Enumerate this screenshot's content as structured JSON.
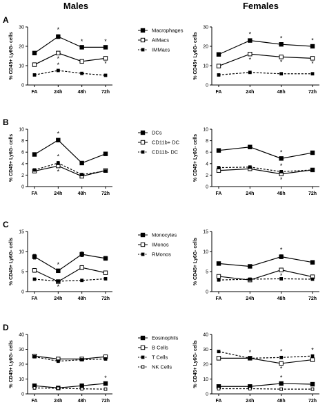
{
  "headings": {
    "left": "Males",
    "right": "Females"
  },
  "ylabel": "% CD45+ Ly6G- cells",
  "categories": [
    "FA",
    "24h",
    "48h",
    "72h"
  ],
  "chart_data": [
    {
      "panel": "A",
      "group": "Males",
      "type": "line",
      "ylim": [
        0,
        30
      ],
      "yticks": [
        0,
        10,
        20,
        30
      ],
      "series": [
        {
          "name": "Macrophages",
          "marker": "square-filled",
          "style": "solid",
          "values": [
            16.5,
            25,
            19.5,
            19.5
          ],
          "err": [
            0.5,
            1,
            0.5,
            0.5
          ],
          "sig": [
            false,
            true,
            true,
            true
          ]
        },
        {
          "name": "AIMacs",
          "marker": "square-open",
          "style": "solid",
          "values": [
            10.5,
            16.5,
            12.2,
            13.8
          ],
          "err": [
            0.5,
            0.8,
            0.5,
            0.5
          ],
          "sig": [
            false,
            true,
            false,
            true
          ]
        },
        {
          "name": "IMMacs",
          "marker": "square-filled-small",
          "style": "dashed",
          "values": [
            5.2,
            7.5,
            6,
            5
          ],
          "err": [
            0.3,
            0.4,
            0.3,
            0.3
          ],
          "sig": [
            false,
            true,
            false,
            false
          ]
        }
      ]
    },
    {
      "panel": "A",
      "group": "Females",
      "type": "line",
      "ylim": [
        0,
        30
      ],
      "yticks": [
        0,
        10,
        20,
        30
      ],
      "series": [
        {
          "name": "Macrophages",
          "marker": "square-filled",
          "style": "solid",
          "values": [
            15.8,
            23,
            21,
            20
          ],
          "err": [
            0.5,
            0.8,
            0.6,
            0.6
          ],
          "sig": [
            false,
            true,
            true,
            true
          ]
        },
        {
          "name": "AIMacs",
          "marker": "square-open",
          "style": "solid",
          "values": [
            9.8,
            16,
            14.5,
            13.8
          ],
          "err": [
            0.5,
            0.8,
            0.6,
            0.5
          ],
          "sig": [
            false,
            true,
            true,
            true
          ]
        },
        {
          "name": "IMMacs",
          "marker": "square-filled-small",
          "style": "dashed",
          "values": [
            5.2,
            6.5,
            5.8,
            5.8
          ],
          "err": [
            0.3,
            0.3,
            0.3,
            0.3
          ],
          "sig": [
            false,
            false,
            false,
            false
          ]
        }
      ]
    },
    {
      "panel": "B",
      "group": "Males",
      "type": "line",
      "ylim": [
        0,
        10
      ],
      "yticks": [
        0,
        2,
        4,
        6,
        8,
        10
      ],
      "series": [
        {
          "name": "DCs",
          "marker": "square-filled",
          "style": "solid",
          "values": [
            5.6,
            8.1,
            4.1,
            5.7
          ],
          "err": [
            0.2,
            0.3,
            0.2,
            0.15
          ],
          "sig": [
            false,
            true,
            false,
            false
          ]
        },
        {
          "name": "CD11b+ DC",
          "marker": "square-open",
          "style": "solid",
          "values": [
            2.7,
            3.6,
            1.8,
            2.8
          ],
          "err": [
            0.2,
            0.3,
            0.2,
            0.2
          ],
          "sig": [
            false,
            true,
            false,
            false
          ]
        },
        {
          "name": "CD11b- DC",
          "marker": "square-filled-small",
          "style": "dashed",
          "values": [
            2.9,
            4.1,
            2.1,
            2.7
          ],
          "err": [
            0.2,
            0.3,
            0.2,
            0.2
          ],
          "sig": [
            false,
            true,
            false,
            false
          ]
        }
      ]
    },
    {
      "panel": "B",
      "group": "Females",
      "type": "line",
      "ylim": [
        0,
        10
      ],
      "yticks": [
        0,
        2,
        4,
        6,
        8,
        10
      ],
      "series": [
        {
          "name": "DCs",
          "marker": "square-filled",
          "style": "solid",
          "values": [
            6.3,
            6.9,
            4.9,
            5.9
          ],
          "err": [
            0.3,
            0.2,
            0.2,
            0.3
          ],
          "sig": [
            false,
            false,
            true,
            false
          ]
        },
        {
          "name": "CD11b+ DC",
          "marker": "square-open",
          "style": "solid",
          "values": [
            2.8,
            3.1,
            2.2,
            2.9
          ],
          "err": [
            0.2,
            0.2,
            0.3,
            0.2
          ],
          "sig": [
            false,
            false,
            true,
            false
          ]
        },
        {
          "name": "CD11b- DC",
          "marker": "square-filled-small",
          "style": "dashed",
          "values": [
            3.3,
            3.4,
            2.6,
            2.9
          ],
          "err": [
            0.2,
            0.2,
            0.2,
            0.2
          ],
          "sig": [
            false,
            false,
            true,
            false
          ]
        }
      ]
    },
    {
      "panel": "C",
      "group": "Males",
      "type": "line",
      "ylim": [
        0,
        15
      ],
      "yticks": [
        0,
        5,
        10,
        15
      ],
      "series": [
        {
          "name": "Monocytes",
          "marker": "square-filled",
          "style": "solid",
          "values": [
            8.7,
            5.2,
            9.3,
            8.3
          ],
          "err": [
            0.6,
            0.3,
            0.6,
            0.5
          ],
          "sig": [
            false,
            true,
            false,
            false
          ]
        },
        {
          "name": "IMonos",
          "marker": "square-open",
          "style": "solid",
          "values": [
            5.3,
            2.5,
            6,
            4.7
          ],
          "err": [
            0.5,
            0.3,
            0.5,
            0.4
          ],
          "sig": [
            false,
            true,
            false,
            false
          ]
        },
        {
          "name": "RMonos",
          "marker": "square-filled-small",
          "style": "dashed",
          "values": [
            3.1,
            2.6,
            2.8,
            3.2
          ],
          "err": [
            0.2,
            0.2,
            0.2,
            0.2
          ],
          "sig": [
            false,
            false,
            false,
            false
          ]
        }
      ]
    },
    {
      "panel": "C",
      "group": "Females",
      "type": "line",
      "ylim": [
        0,
        15
      ],
      "yticks": [
        0,
        5,
        10,
        15
      ],
      "series": [
        {
          "name": "Monocytes",
          "marker": "square-filled",
          "style": "solid",
          "values": [
            7,
            6.3,
            8.7,
            7.3
          ],
          "err": [
            0.4,
            0.3,
            0.5,
            0.3
          ],
          "sig": [
            false,
            false,
            true,
            false
          ]
        },
        {
          "name": "IMonos",
          "marker": "square-open",
          "style": "solid",
          "values": [
            3.8,
            2.9,
            5.4,
            3.7
          ],
          "err": [
            0.3,
            0.2,
            0.4,
            0.3
          ],
          "sig": [
            false,
            false,
            true,
            false
          ]
        },
        {
          "name": "RMonos",
          "marker": "square-filled-small",
          "style": "dashed",
          "values": [
            2.9,
            3.1,
            3.2,
            3.1
          ],
          "err": [
            0.2,
            0.2,
            0.2,
            0.2
          ],
          "sig": [
            false,
            false,
            false,
            false
          ]
        }
      ]
    },
    {
      "panel": "D",
      "group": "Males",
      "type": "line",
      "ylim": [
        0,
        40
      ],
      "yticks": [
        0,
        10,
        20,
        30,
        40
      ],
      "series": [
        {
          "name": "Eosinophils",
          "marker": "square-filled",
          "style": "solid",
          "values": [
            5.5,
            4,
            5.5,
            7
          ],
          "err": [
            0.5,
            0.4,
            0.5,
            0.5
          ],
          "sig": [
            false,
            false,
            false,
            true
          ]
        },
        {
          "name": "B Cells",
          "marker": "square-open",
          "style": "solid",
          "values": [
            25.5,
            23.5,
            23.5,
            25
          ],
          "err": [
            0.8,
            0.8,
            0.8,
            0.8
          ],
          "sig": [
            false,
            false,
            false,
            false
          ]
        },
        {
          "name": "T Cells",
          "marker": "square-filled-small",
          "style": "dashed",
          "values": [
            25,
            22,
            23,
            23.5
          ],
          "err": [
            0.8,
            0.7,
            0.7,
            0.8
          ],
          "sig": [
            false,
            false,
            false,
            false
          ]
        },
        {
          "name": "NK Cells",
          "marker": "square-open-small",
          "style": "dashed",
          "values": [
            4,
            3.8,
            3.4,
            3.2
          ],
          "err": [
            0.3,
            0.3,
            0.3,
            0.3
          ],
          "sig": [
            false,
            false,
            false,
            false
          ]
        }
      ]
    },
    {
      "panel": "D",
      "group": "Females",
      "type": "line",
      "ylim": [
        0,
        40
      ],
      "yticks": [
        0,
        10,
        20,
        30,
        40
      ],
      "series": [
        {
          "name": "Eosinophils",
          "marker": "square-filled",
          "style": "solid",
          "values": [
            5,
            5,
            7,
            6.5
          ],
          "err": [
            0.5,
            0.5,
            0.6,
            0.5
          ],
          "sig": [
            false,
            false,
            true,
            false
          ]
        },
        {
          "name": "B Cells",
          "marker": "square-open",
          "style": "solid",
          "values": [
            24,
            24,
            20.5,
            23
          ],
          "err": [
            0.7,
            0.7,
            0.8,
            0.8
          ],
          "sig": [
            false,
            false,
            true,
            false
          ]
        },
        {
          "name": "T Cells",
          "marker": "square-filled-small",
          "style": "dashed",
          "values": [
            28.5,
            24,
            24.5,
            25.5
          ],
          "err": [
            0.8,
            0.7,
            0.8,
            0.8
          ],
          "sig": [
            false,
            true,
            true,
            true
          ]
        },
        {
          "name": "NK Cells",
          "marker": "square-open-small",
          "style": "dashed",
          "values": [
            3.5,
            3.5,
            3.2,
            3.2
          ],
          "err": [
            0.3,
            0.3,
            0.3,
            0.3
          ],
          "sig": [
            false,
            false,
            true,
            false
          ]
        }
      ]
    }
  ]
}
